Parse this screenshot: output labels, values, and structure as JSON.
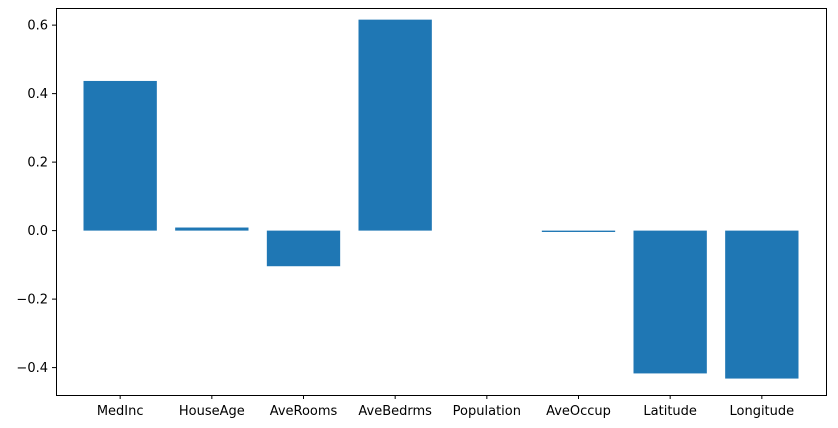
{
  "chart_data": {
    "type": "bar",
    "title": "",
    "xlabel": "",
    "ylabel": "",
    "categories": [
      "MedInc",
      "HouseAge",
      "AveRooms",
      "AveBedrms",
      "Population",
      "AveOccup",
      "Latitude",
      "Longitude"
    ],
    "values": [
      0.437,
      0.009,
      -0.104,
      0.616,
      0.0,
      -0.004,
      -0.417,
      -0.432
    ],
    "ylim": [
      -0.48,
      0.65
    ],
    "yticks": [
      -0.4,
      -0.2,
      0.0,
      0.2,
      0.4,
      0.6
    ],
    "ytick_labels": [
      "−0.4",
      "−0.2",
      "0.0",
      "0.2",
      "0.4",
      "0.6"
    ],
    "bar_color": "#1f77b4",
    "grid": false,
    "legend": "none"
  }
}
